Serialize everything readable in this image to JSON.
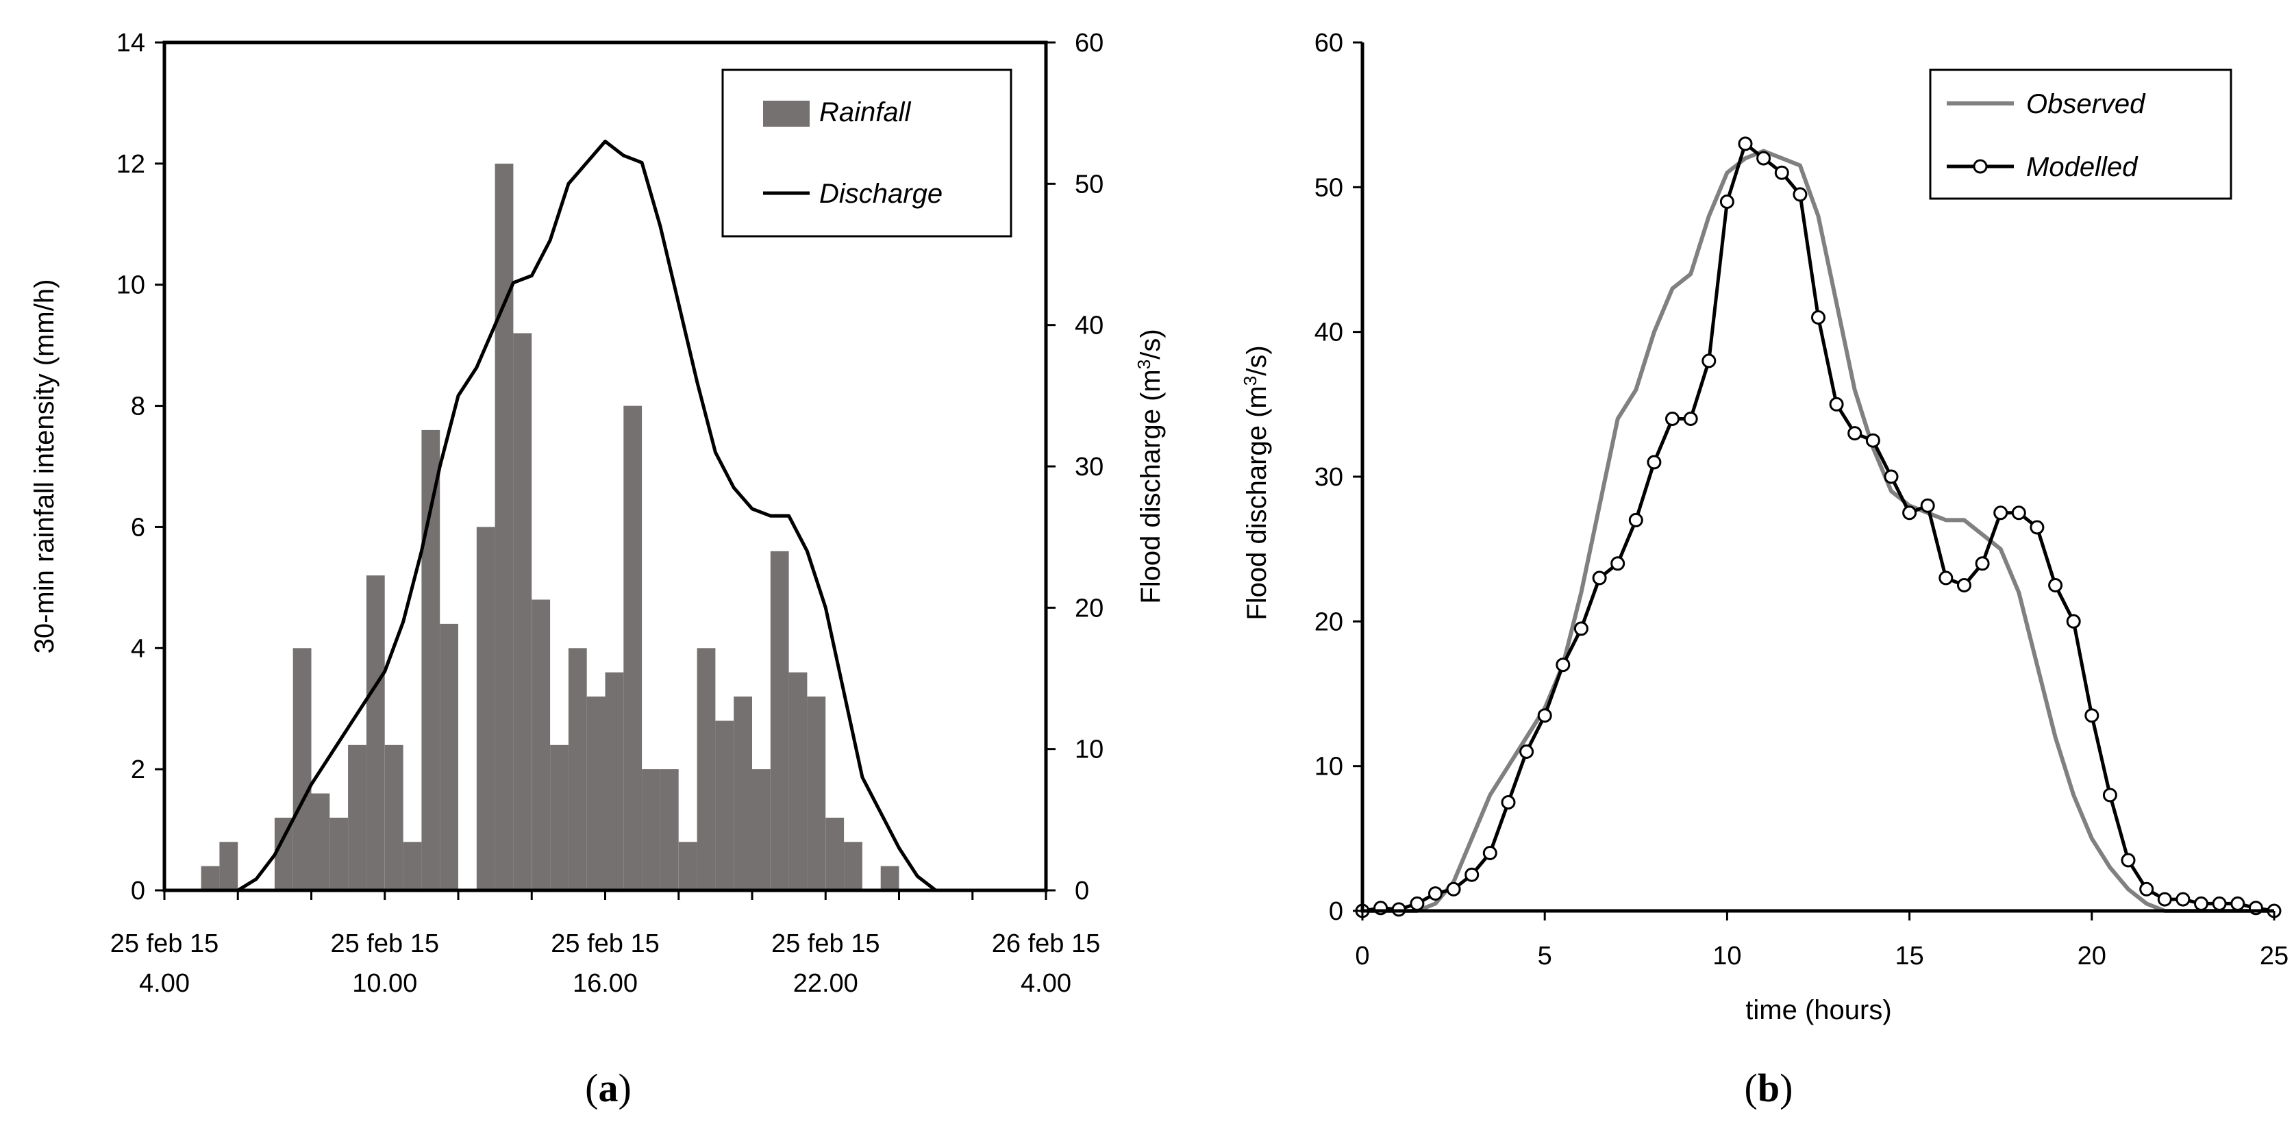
{
  "chart_data": [
    {
      "id": "a",
      "type": "bar+line",
      "panel_label": "a",
      "ylabel_left": "30-min rainfall intensity (mm/h)",
      "ylabel_right_prefix": "Flood discharge (m",
      "ylabel_right_sup": "3",
      "ylabel_right_suffix": "/s)",
      "ylim_left": [
        0,
        14
      ],
      "ylim_right": [
        0,
        60
      ],
      "yticks_left": [
        "0",
        "2",
        "4",
        "6",
        "8",
        "10",
        "12",
        "14"
      ],
      "yticks_right": [
        "0",
        "10",
        "20",
        "30",
        "40",
        "50",
        "60"
      ],
      "xlim_hours": [
        4,
        28
      ],
      "xticks": [
        {
          "h": 4,
          "line1": "25 feb 15",
          "line2": "4.00"
        },
        {
          "h": 10,
          "line1": "25 feb 15",
          "line2": "10.00"
        },
        {
          "h": 16,
          "line1": "25 feb 15",
          "line2": "16.00"
        },
        {
          "h": 22,
          "line1": "25 feb 15",
          "line2": "22.00"
        },
        {
          "h": 28,
          "line1": "26 feb 15",
          "line2": "4.00"
        }
      ],
      "legend": {
        "rainfall": "Rainfall",
        "discharge": "Discharge"
      },
      "series": [
        {
          "name": "Rainfall",
          "kind": "bar",
          "axis": "left",
          "color": "#767171",
          "bin_hours": 0.5,
          "start_hours": [
            5,
            5.5,
            6,
            6.5,
            7,
            7.5,
            8,
            8.5,
            9,
            9.5,
            10,
            10.5,
            11,
            11.5,
            12,
            12.5,
            13,
            13.5,
            14,
            14.5,
            15,
            15.5,
            16,
            16.5,
            17,
            17.5,
            18,
            18.5,
            19,
            19.5,
            20,
            20.5,
            21,
            21.5,
            22,
            22.5,
            23,
            23.5
          ],
          "values": [
            0.4,
            0.8,
            0,
            0,
            1.2,
            4.0,
            1.6,
            1.2,
            2.4,
            5.2,
            2.4,
            0.8,
            7.6,
            4.4,
            0,
            6.0,
            12.0,
            9.2,
            4.8,
            2.4,
            4.0,
            3.2,
            3.6,
            8.0,
            2.0,
            2.0,
            0.8,
            4.0,
            2.8,
            3.2,
            2.0,
            5.6,
            3.6,
            3.2,
            1.2,
            0.8,
            0,
            0.4
          ]
        },
        {
          "name": "Discharge",
          "kind": "line",
          "axis": "right",
          "color": "#000000",
          "x_hours": [
            4,
            5,
            6,
            6.5,
            7,
            7.5,
            8,
            8.5,
            9,
            9.5,
            10,
            10.5,
            11,
            11.5,
            12,
            12.5,
            13,
            13.5,
            14,
            14.5,
            15,
            15.5,
            16,
            16.5,
            17,
            17.5,
            18,
            18.5,
            19,
            19.5,
            20,
            20.5,
            21,
            21.5,
            22,
            22.5,
            23,
            23.5,
            24,
            24.5,
            25,
            25.5,
            26,
            27,
            28
          ],
          "values": [
            0,
            0,
            0,
            0.8,
            2.5,
            5,
            7.5,
            9.5,
            11.5,
            13.5,
            15.5,
            19,
            24,
            30,
            35,
            37,
            40,
            43,
            43.5,
            46,
            50,
            51.5,
            53,
            52,
            51.5,
            47,
            41.5,
            36,
            31,
            28.5,
            27,
            26.5,
            26.5,
            24,
            20,
            14,
            8,
            5.5,
            3,
            1,
            0,
            0,
            0,
            0,
            0
          ]
        }
      ]
    },
    {
      "id": "b",
      "type": "line",
      "panel_label": "b",
      "xlabel": "time (hours)",
      "ylabel_prefix": "Flood discharge (m",
      "ylabel_sup": "3",
      "ylabel_suffix": "/s)",
      "xlim": [
        0,
        25
      ],
      "ylim": [
        0,
        60
      ],
      "xticks": [
        "0",
        "5",
        "10",
        "15",
        "20",
        "25"
      ],
      "yticks": [
        "0",
        "10",
        "20",
        "30",
        "40",
        "50",
        "60"
      ],
      "legend": {
        "observed": "Observed",
        "modelled": "Modelled"
      },
      "series": [
        {
          "name": "Observed",
          "color": "#808080",
          "x": [
            0,
            1,
            1.5,
            2,
            2.5,
            3,
            3.5,
            4,
            4.5,
            5,
            5.5,
            6,
            6.5,
            7,
            7.5,
            8,
            8.5,
            9,
            9.5,
            10,
            10.5,
            11,
            11.5,
            12,
            12.5,
            13,
            13.5,
            14,
            14.5,
            15,
            15.5,
            16,
            16.5,
            17,
            17.5,
            18,
            18.5,
            19,
            19.5,
            20,
            20.5,
            21,
            21.5,
            22,
            22.5,
            23,
            24,
            25
          ],
          "values": [
            0,
            0,
            0,
            0.5,
            2,
            5,
            8,
            10,
            12,
            14,
            17,
            22,
            28,
            34,
            36,
            40,
            43,
            44,
            48,
            51,
            52,
            52.5,
            52,
            51.5,
            48,
            42,
            36,
            32,
            29,
            28,
            27.5,
            27,
            27,
            26,
            25,
            22,
            17,
            12,
            8,
            5,
            3,
            1.5,
            0.5,
            0,
            0,
            0,
            0,
            0
          ]
        },
        {
          "name": "Modelled",
          "color": "#000000",
          "x": [
            0,
            0.5,
            1,
            1.5,
            2,
            2.5,
            3,
            3.5,
            4,
            4.5,
            5,
            5.5,
            6,
            6.5,
            7,
            7.5,
            8,
            8.5,
            9,
            9.5,
            10,
            10.5,
            11,
            11.5,
            12,
            12.5,
            13,
            13.5,
            14,
            14.5,
            15,
            15.5,
            16,
            16.5,
            17,
            17.5,
            18,
            18.5,
            19,
            19.5,
            20,
            20.5,
            21,
            21.5,
            22,
            22.5,
            23,
            23.5,
            24,
            24.5,
            25
          ],
          "values": [
            0,
            0.2,
            0.1,
            0.5,
            1.2,
            1.5,
            2.5,
            4,
            7.5,
            11,
            13.5,
            17,
            19.5,
            23,
            24,
            27,
            31,
            34,
            34,
            38,
            49,
            53,
            52,
            51,
            49.5,
            41,
            35,
            33,
            32.5,
            30,
            27.5,
            28,
            23,
            22.5,
            24,
            27.5,
            27.5,
            26.5,
            22.5,
            20,
            13.5,
            8,
            3.5,
            1.5,
            0.8,
            0.8,
            0.5,
            0.5,
            0.5,
            0.2,
            0
          ]
        }
      ]
    }
  ]
}
